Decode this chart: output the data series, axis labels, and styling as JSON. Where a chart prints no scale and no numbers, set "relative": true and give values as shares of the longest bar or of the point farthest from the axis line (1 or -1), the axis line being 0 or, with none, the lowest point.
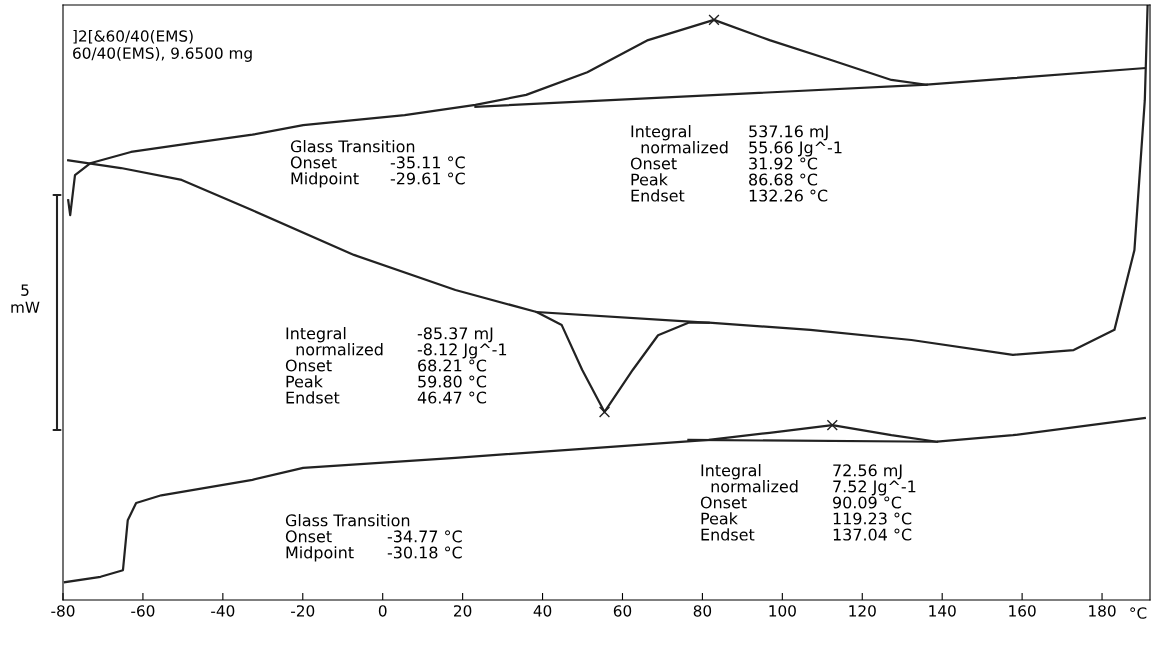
{
  "chart_data": {
    "type": "line",
    "title": "]2[&60/40(EMS)",
    "subtitle": "60/40(EMS), 9.6500 mg",
    "xlabel": "°C",
    "ylabel": "5\nmW",
    "relative": true,
    "xlim": [
      -80,
      192
    ],
    "xticks": [
      -80,
      -60,
      -40,
      -20,
      0,
      20,
      40,
      60,
      80,
      100,
      120,
      140,
      160,
      180
    ],
    "tick_labels": "x",
    "grid": false,
    "legend": false,
    "series": [
      {
        "color": "#222222",
        "x": [
          -78.7,
          -78.2,
          -77.0,
          -73.2,
          -63.0,
          -47.8,
          -32.6,
          -19.9,
          5.5,
          23.2,
          35.9,
          51.2,
          66.4,
          82.9,
          96.8,
          112.0,
          127.3,
          136.1,
          157.7,
          190.7
        ],
        "values": [
          0.672,
          0.647,
          0.714,
          0.734,
          0.753,
          0.768,
          0.782,
          0.798,
          0.815,
          0.832,
          0.849,
          0.887,
          0.941,
          0.975,
          0.941,
          0.908,
          0.874,
          0.866,
          0.877,
          0.894
        ]
      },
      {
        "color": "#222222",
        "x": [
          191.4,
          190.7,
          188.1,
          183.1,
          172.9,
          157.7,
          132.3,
          107.0,
          81.6,
          76.5,
          68.9,
          62.6,
          55.5,
          49.9,
          44.8,
          38.5,
          18.2,
          -7.2,
          -32.6,
          -50.3,
          -65.5,
          -78.7
        ],
        "values": [
          1.0,
          0.84,
          0.588,
          0.454,
          0.42,
          0.412,
          0.437,
          0.454,
          0.466,
          0.466,
          0.445,
          0.387,
          0.316,
          0.387,
          0.462,
          0.484,
          0.521,
          0.58,
          0.655,
          0.706,
          0.726,
          0.739
        ]
      },
      {
        "color": "#222222",
        "x": [
          -79.5,
          -70.6,
          -65.0,
          -63.8,
          -61.7,
          -55.4,
          -32.6,
          -19.9,
          18.2,
          56.2,
          81.6,
          96.8,
          112.5,
          127.3,
          138.7,
          157.7,
          190.7
        ],
        "values": [
          0.03,
          0.039,
          0.05,
          0.134,
          0.163,
          0.176,
          0.202,
          0.222,
          0.239,
          0.257,
          0.269,
          0.281,
          0.294,
          0.277,
          0.266,
          0.277,
          0.306
        ]
      },
      {
        "color": "#222222",
        "x": [
          23.2,
          136.1
        ],
        "values": [
          0.829,
          0.866
        ]
      },
      {
        "color": "#222222",
        "x": [
          38.5,
          81.6
        ],
        "values": [
          0.484,
          0.466
        ]
      },
      {
        "color": "#222222",
        "x": [
          76.5,
          138.7
        ],
        "values": [
          0.269,
          0.266
        ]
      },
      {
        "type": "scatter",
        "marker": "cross",
        "color": "#222222",
        "x": [
          82.9,
          55.5,
          112.5
        ],
        "values": [
          0.975,
          0.316,
          0.294
        ]
      }
    ],
    "annotations": [
      "Glass Transition\nOnset\nMidpoint",
      "\n-35.11 °C\n-29.61 °C",
      "Integral\n  normalized\nOnset\nPeak\nEndset",
      "537.16 mJ\n55.66 Jg^-1\n31.92 °C\n86.68 °C\n132.26 °C",
      "Integral\n  normalized\nOnset\nPeak\nEndset",
      "-85.37 mJ\n-8.12 Jg^-1\n68.21 °C\n59.80 °C\n46.47 °C",
      "Glass Transition\nOnset\nMidpoint",
      "\n-34.77 °C\n-30.18 °C",
      "Integral\n  normalized\nOnset\nPeak\nEndset",
      "72.56 mJ\n7.52 Jg^-1\n90.09 °C\n119.23 °C\n137.04 °C"
    ]
  }
}
